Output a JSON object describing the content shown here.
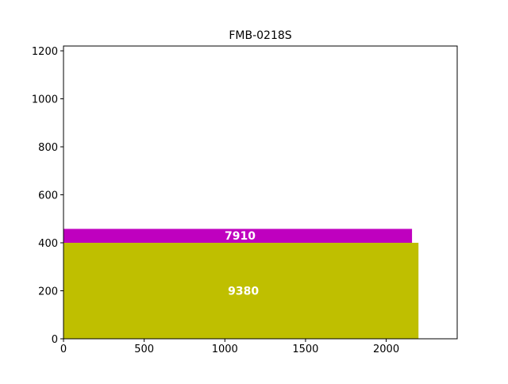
{
  "chart_data": {
    "type": "bar",
    "orientation": "stacked-rectangles",
    "title": "FMB-0218S",
    "xlabel": "",
    "ylabel": "",
    "xlim": [
      0,
      2440
    ],
    "ylim": [
      0,
      1220
    ],
    "xticks": [
      0,
      500,
      1000,
      1500,
      2000
    ],
    "yticks": [
      0,
      200,
      400,
      600,
      800,
      1000,
      1200
    ],
    "grid": false,
    "legend": "none",
    "rects": [
      {
        "label": "9380",
        "x0": 0,
        "x1": 2200,
        "y0": 0,
        "y1": 400,
        "color": "#bfbf00"
      },
      {
        "label": "7910",
        "x0": 0,
        "x1": 2160,
        "y0": 400,
        "y1": 458,
        "color": "#bf00bf"
      }
    ]
  }
}
